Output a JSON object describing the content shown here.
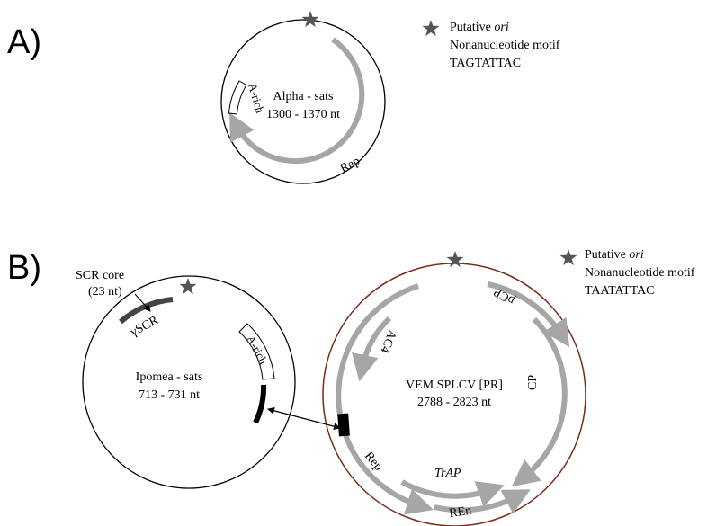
{
  "panels": {
    "a": {
      "letter": "A)",
      "circle_label": "Alpha - sats",
      "size_label": "1300 - 1370 nt",
      "legend": {
        "line1_prefix": "Putative ",
        "line1_italic": "ori",
        "line2": "Nonanucleotide motif",
        "line3": "TAGTATTAC"
      },
      "features": {
        "a_rich": "A-rich",
        "rep": "Rep"
      }
    },
    "b": {
      "letter": "B)",
      "legend": {
        "line1_prefix": "Putative ",
        "line1_italic": "ori",
        "line2": "Nonanucleotide motif",
        "line3": "TAATATTAC"
      },
      "satellite": {
        "circle_label": "Ipomea - sats",
        "size_label": "713 - 731 nt",
        "scr_core_line1": "SCR core",
        "scr_core_line2": "(23 nt)",
        "gamma_scr": "γSCR",
        "a_rich": "A-rich"
      },
      "helper": {
        "circle_label": "VEM SPLCV [PR]",
        "size_label": "2788 - 2823 nt",
        "genes": {
          "pcp": "pCP",
          "ac4": "AC4",
          "cp": "CP",
          "rep": "Rep",
          "trap": "TrAP",
          "ren": "REn"
        }
      }
    }
  },
  "colors": {
    "star": "#555555",
    "arrow_gray": "#a6a6a6",
    "helper_circle": "#7a2a18",
    "dark_bar": "#444444",
    "black": "#000000"
  }
}
